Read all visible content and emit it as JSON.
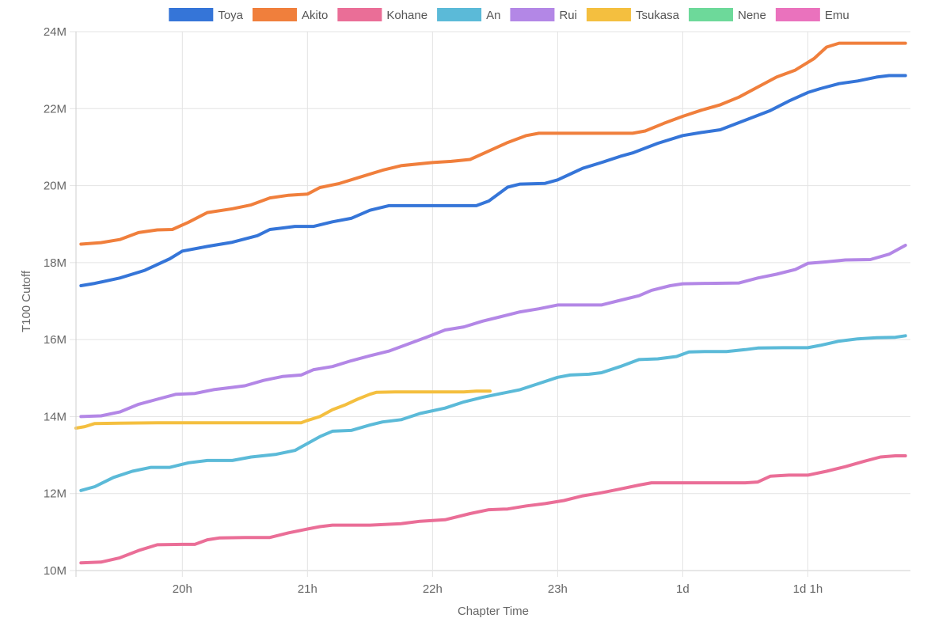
{
  "chart_data": {
    "type": "line",
    "xlabel": "Chapter Time",
    "ylabel": "T100 Cutoff",
    "x_ticks": [
      {
        "x": 20,
        "label": "20h"
      },
      {
        "x": 21,
        "label": "21h"
      },
      {
        "x": 22,
        "label": "22h"
      },
      {
        "x": 23,
        "label": "23h"
      },
      {
        "x": 24,
        "label": "1d"
      },
      {
        "x": 25,
        "label": "1d 1h"
      }
    ],
    "xlim": [
      19.15,
      25.82
    ],
    "ylim": [
      10,
      24
    ],
    "y_ticks": [
      {
        "y": 10,
        "label": "10M"
      },
      {
        "y": 12,
        "label": "12M"
      },
      {
        "y": 14,
        "label": "14M"
      },
      {
        "y": 16,
        "label": "16M"
      },
      {
        "y": 18,
        "label": "18M"
      },
      {
        "y": 20,
        "label": "20M"
      },
      {
        "y": 22,
        "label": "22M"
      },
      {
        "y": 24,
        "label": "24M"
      }
    ],
    "grid": true,
    "legend_position": "top",
    "series": [
      {
        "name": "Toya",
        "color": "#3575d8",
        "points": [
          [
            19.19,
            17.4
          ],
          [
            19.3,
            17.46
          ],
          [
            19.5,
            17.6
          ],
          [
            19.7,
            17.8
          ],
          [
            19.9,
            18.1
          ],
          [
            20.0,
            18.3
          ],
          [
            20.2,
            18.42
          ],
          [
            20.4,
            18.53
          ],
          [
            20.6,
            18.7
          ],
          [
            20.7,
            18.86
          ],
          [
            20.8,
            18.9
          ],
          [
            20.9,
            18.94
          ],
          [
            21.05,
            18.94
          ],
          [
            21.2,
            19.06
          ],
          [
            21.35,
            19.15
          ],
          [
            21.5,
            19.36
          ],
          [
            21.65,
            19.48
          ],
          [
            21.8,
            19.48
          ],
          [
            22.0,
            19.48
          ],
          [
            22.2,
            19.48
          ],
          [
            22.35,
            19.48
          ],
          [
            22.45,
            19.6
          ],
          [
            22.6,
            19.96
          ],
          [
            22.7,
            20.04
          ],
          [
            22.9,
            20.06
          ],
          [
            23.0,
            20.15
          ],
          [
            23.1,
            20.3
          ],
          [
            23.2,
            20.45
          ],
          [
            23.35,
            20.6
          ],
          [
            23.5,
            20.76
          ],
          [
            23.6,
            20.85
          ],
          [
            23.8,
            21.1
          ],
          [
            24.0,
            21.3
          ],
          [
            24.15,
            21.38
          ],
          [
            24.3,
            21.45
          ],
          [
            24.5,
            21.7
          ],
          [
            24.7,
            21.95
          ],
          [
            24.85,
            22.2
          ],
          [
            25.0,
            22.42
          ],
          [
            25.1,
            22.52
          ],
          [
            25.25,
            22.65
          ],
          [
            25.4,
            22.72
          ],
          [
            25.55,
            22.82
          ],
          [
            25.65,
            22.86
          ],
          [
            25.78,
            22.86
          ]
        ]
      },
      {
        "name": "Akito",
        "color": "#f07f3c",
        "points": [
          [
            19.19,
            18.48
          ],
          [
            19.35,
            18.52
          ],
          [
            19.5,
            18.6
          ],
          [
            19.65,
            18.78
          ],
          [
            19.8,
            18.85
          ],
          [
            19.92,
            18.86
          ],
          [
            20.05,
            19.05
          ],
          [
            20.2,
            19.3
          ],
          [
            20.4,
            19.4
          ],
          [
            20.55,
            19.5
          ],
          [
            20.7,
            19.68
          ],
          [
            20.85,
            19.75
          ],
          [
            21.0,
            19.78
          ],
          [
            21.1,
            19.95
          ],
          [
            21.25,
            20.05
          ],
          [
            21.4,
            20.2
          ],
          [
            21.6,
            20.4
          ],
          [
            21.75,
            20.52
          ],
          [
            22.0,
            20.6
          ],
          [
            22.15,
            20.63
          ],
          [
            22.3,
            20.68
          ],
          [
            22.45,
            20.9
          ],
          [
            22.6,
            21.12
          ],
          [
            22.75,
            21.3
          ],
          [
            22.85,
            21.36
          ],
          [
            23.0,
            21.36
          ],
          [
            23.3,
            21.36
          ],
          [
            23.6,
            21.36
          ],
          [
            23.7,
            21.42
          ],
          [
            23.85,
            21.62
          ],
          [
            24.0,
            21.8
          ],
          [
            24.15,
            21.96
          ],
          [
            24.3,
            22.1
          ],
          [
            24.45,
            22.3
          ],
          [
            24.6,
            22.56
          ],
          [
            24.75,
            22.82
          ],
          [
            24.9,
            23.0
          ],
          [
            25.05,
            23.3
          ],
          [
            25.15,
            23.6
          ],
          [
            25.25,
            23.7
          ],
          [
            25.5,
            23.7
          ],
          [
            25.78,
            23.7
          ]
        ]
      },
      {
        "name": "Kohane",
        "color": "#ea6e97",
        "points": [
          [
            19.19,
            10.2
          ],
          [
            19.35,
            10.22
          ],
          [
            19.5,
            10.33
          ],
          [
            19.65,
            10.52
          ],
          [
            19.8,
            10.67
          ],
          [
            20.0,
            10.68
          ],
          [
            20.1,
            10.68
          ],
          [
            20.2,
            10.8
          ],
          [
            20.3,
            10.85
          ],
          [
            20.5,
            10.86
          ],
          [
            20.7,
            10.86
          ],
          [
            20.85,
            10.98
          ],
          [
            21.0,
            11.08
          ],
          [
            21.1,
            11.14
          ],
          [
            21.2,
            11.18
          ],
          [
            21.5,
            11.18
          ],
          [
            21.75,
            11.22
          ],
          [
            21.9,
            11.28
          ],
          [
            22.1,
            11.32
          ],
          [
            22.3,
            11.48
          ],
          [
            22.45,
            11.58
          ],
          [
            22.6,
            11.6
          ],
          [
            22.75,
            11.68
          ],
          [
            22.9,
            11.74
          ],
          [
            23.05,
            11.82
          ],
          [
            23.2,
            11.94
          ],
          [
            23.35,
            12.02
          ],
          [
            23.5,
            12.12
          ],
          [
            23.65,
            12.22
          ],
          [
            23.75,
            12.28
          ],
          [
            24.0,
            12.28
          ],
          [
            24.25,
            12.28
          ],
          [
            24.5,
            12.28
          ],
          [
            24.6,
            12.3
          ],
          [
            24.7,
            12.45
          ],
          [
            24.85,
            12.48
          ],
          [
            25.0,
            12.48
          ],
          [
            25.15,
            12.58
          ],
          [
            25.3,
            12.7
          ],
          [
            25.45,
            12.84
          ],
          [
            25.58,
            12.95
          ],
          [
            25.7,
            12.98
          ],
          [
            25.78,
            12.98
          ]
        ]
      },
      {
        "name": "An",
        "color": "#5bbad8",
        "points": [
          [
            19.19,
            12.08
          ],
          [
            19.3,
            12.18
          ],
          [
            19.45,
            12.42
          ],
          [
            19.6,
            12.58
          ],
          [
            19.75,
            12.68
          ],
          [
            19.9,
            12.68
          ],
          [
            20.05,
            12.8
          ],
          [
            20.2,
            12.86
          ],
          [
            20.4,
            12.86
          ],
          [
            20.55,
            12.95
          ],
          [
            20.75,
            13.02
          ],
          [
            20.9,
            13.12
          ],
          [
            21.0,
            13.3
          ],
          [
            21.1,
            13.48
          ],
          [
            21.2,
            13.62
          ],
          [
            21.35,
            13.64
          ],
          [
            21.5,
            13.78
          ],
          [
            21.6,
            13.86
          ],
          [
            21.75,
            13.92
          ],
          [
            21.9,
            14.08
          ],
          [
            22.1,
            14.22
          ],
          [
            22.25,
            14.38
          ],
          [
            22.4,
            14.5
          ],
          [
            22.55,
            14.6
          ],
          [
            22.7,
            14.7
          ],
          [
            22.85,
            14.86
          ],
          [
            23.0,
            15.02
          ],
          [
            23.1,
            15.08
          ],
          [
            23.25,
            15.1
          ],
          [
            23.35,
            15.14
          ],
          [
            23.5,
            15.3
          ],
          [
            23.65,
            15.48
          ],
          [
            23.8,
            15.5
          ],
          [
            23.95,
            15.56
          ],
          [
            24.05,
            15.68
          ],
          [
            24.2,
            15.69
          ],
          [
            24.35,
            15.69
          ],
          [
            24.5,
            15.74
          ],
          [
            24.6,
            15.78
          ],
          [
            24.8,
            15.79
          ],
          [
            25.0,
            15.79
          ],
          [
            25.1,
            15.85
          ],
          [
            25.25,
            15.96
          ],
          [
            25.4,
            16.02
          ],
          [
            25.55,
            16.05
          ],
          [
            25.7,
            16.06
          ],
          [
            25.78,
            16.1
          ]
        ]
      },
      {
        "name": "Rui",
        "color": "#b387e6",
        "points": [
          [
            19.19,
            14.0
          ],
          [
            19.35,
            14.02
          ],
          [
            19.5,
            14.12
          ],
          [
            19.65,
            14.32
          ],
          [
            19.8,
            14.45
          ],
          [
            19.95,
            14.58
          ],
          [
            20.1,
            14.6
          ],
          [
            20.25,
            14.7
          ],
          [
            20.4,
            14.76
          ],
          [
            20.5,
            14.8
          ],
          [
            20.65,
            14.94
          ],
          [
            20.8,
            15.04
          ],
          [
            20.95,
            15.08
          ],
          [
            21.05,
            15.22
          ],
          [
            21.2,
            15.3
          ],
          [
            21.35,
            15.45
          ],
          [
            21.5,
            15.58
          ],
          [
            21.65,
            15.7
          ],
          [
            21.8,
            15.88
          ],
          [
            21.95,
            16.06
          ],
          [
            22.1,
            16.25
          ],
          [
            22.25,
            16.33
          ],
          [
            22.4,
            16.48
          ],
          [
            22.55,
            16.6
          ],
          [
            22.7,
            16.72
          ],
          [
            22.85,
            16.8
          ],
          [
            23.0,
            16.9
          ],
          [
            23.15,
            16.9
          ],
          [
            23.35,
            16.9
          ],
          [
            23.5,
            17.02
          ],
          [
            23.65,
            17.14
          ],
          [
            23.75,
            17.28
          ],
          [
            23.9,
            17.4
          ],
          [
            24.0,
            17.45
          ],
          [
            24.2,
            17.46
          ],
          [
            24.45,
            17.47
          ],
          [
            24.6,
            17.6
          ],
          [
            24.75,
            17.7
          ],
          [
            24.9,
            17.82
          ],
          [
            25.0,
            17.98
          ],
          [
            25.15,
            18.02
          ],
          [
            25.3,
            18.07
          ],
          [
            25.5,
            18.08
          ],
          [
            25.65,
            18.22
          ],
          [
            25.78,
            18.45
          ]
        ]
      },
      {
        "name": "Tsukasa",
        "color": "#f4bf3f",
        "points": [
          [
            19.15,
            13.7
          ],
          [
            19.22,
            13.74
          ],
          [
            19.3,
            13.82
          ],
          [
            19.5,
            13.83
          ],
          [
            19.8,
            13.84
          ],
          [
            20.0,
            13.84
          ],
          [
            20.2,
            13.84
          ],
          [
            20.4,
            13.84
          ],
          [
            20.6,
            13.84
          ],
          [
            20.8,
            13.84
          ],
          [
            20.95,
            13.84
          ],
          [
            21.0,
            13.9
          ],
          [
            21.1,
            14.0
          ],
          [
            21.2,
            14.18
          ],
          [
            21.3,
            14.3
          ],
          [
            21.4,
            14.45
          ],
          [
            21.5,
            14.58
          ],
          [
            21.55,
            14.63
          ],
          [
            21.7,
            14.64
          ],
          [
            21.9,
            14.64
          ],
          [
            22.1,
            14.64
          ],
          [
            22.25,
            14.64
          ],
          [
            22.35,
            14.66
          ],
          [
            22.46,
            14.66
          ]
        ]
      },
      {
        "name": "Nene",
        "color": "#6dd99a",
        "points": []
      },
      {
        "name": "Emu",
        "color": "#ea72bd",
        "points": []
      }
    ]
  }
}
